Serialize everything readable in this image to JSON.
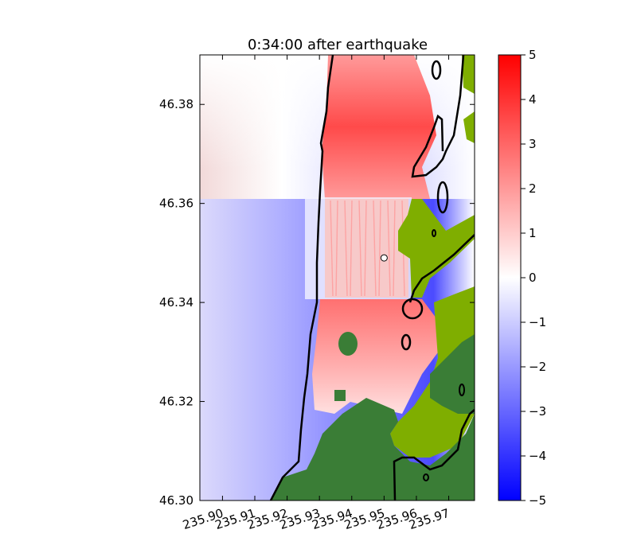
{
  "chart_data": {
    "type": "heatmap",
    "title": "0:34:00 after earthquake",
    "xlabel": "",
    "ylabel": "",
    "xlim": [
      235.893,
      235.978
    ],
    "ylim": [
      46.3,
      46.39
    ],
    "x_ticks": [
      235.9,
      235.91,
      235.92,
      235.93,
      235.94,
      235.95,
      235.96,
      235.97
    ],
    "x_tick_labels": [
      "235.90",
      "235.91",
      "235.92",
      "235.93",
      "235.94",
      "235.95",
      "235.96",
      "235.97"
    ],
    "y_ticks": [
      46.3,
      46.32,
      46.34,
      46.36,
      46.38
    ],
    "y_tick_labels": [
      "46.30",
      "46.32",
      "46.34",
      "46.36",
      "46.38"
    ],
    "colorbar": {
      "range": [
        -5,
        5
      ],
      "ticks": [
        -5,
        -4,
        -3,
        -2,
        -1,
        0,
        1,
        2,
        3,
        4,
        5
      ],
      "tick_labels": [
        "−5",
        "−4",
        "−3",
        "−2",
        "−1",
        "0",
        "1",
        "2",
        "3",
        "4",
        "5"
      ],
      "colormap": "blue-white-red"
    },
    "colors": {
      "positive": "#ff0000",
      "negative": "#0000ff",
      "zero": "#ffffff",
      "dry_land_low": "#7fae00",
      "dry_land_high": "#3a7d36",
      "contour": "#000000"
    },
    "gauge_marker": {
      "x": 235.95,
      "y": 46.349
    },
    "grid": false,
    "legend": "none"
  }
}
